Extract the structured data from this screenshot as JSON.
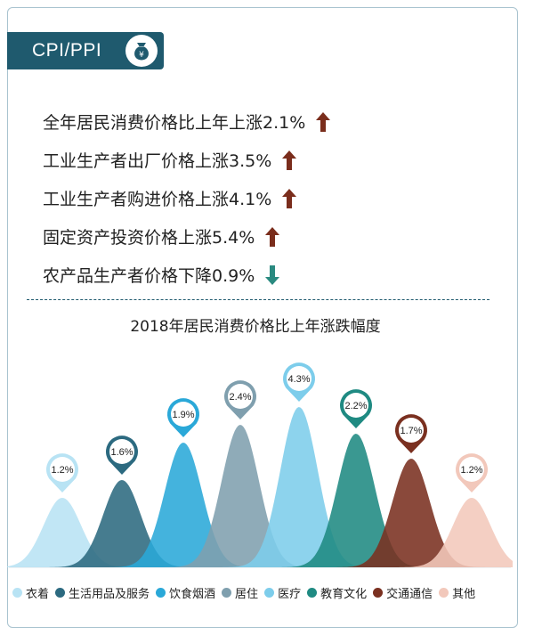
{
  "header": {
    "title": "CPI/PPI",
    "icon": "money-bag-yuan-icon"
  },
  "stats": [
    {
      "text": "全年居民消费价格比上年上涨2.1%",
      "direction": "up"
    },
    {
      "text": "工业生产者出厂价格上涨3.5%",
      "direction": "up"
    },
    {
      "text": "工业生产者购进价格上涨4.1%",
      "direction": "up"
    },
    {
      "text": "固定资产投资价格上涨5.4%",
      "direction": "up"
    },
    {
      "text": "农产品生产者价格下降0.9%",
      "direction": "down"
    }
  ],
  "colors": {
    "up_arrow": "#7a2d1c",
    "down_arrow": "#2a8a80",
    "header_bg": "#1f5a6e"
  },
  "chart_data": {
    "type": "area",
    "title": "2018年居民消费价格比上年涨跌幅度",
    "categories": [
      "衣着",
      "生活用品及服务",
      "饮食烟酒",
      "居住",
      "医疗",
      "教育文化",
      "交通通信",
      "其他"
    ],
    "values": [
      1.2,
      1.6,
      1.9,
      2.4,
      4.3,
      2.2,
      1.7,
      1.2
    ],
    "labels": [
      "1.2%",
      "1.6%",
      "1.9%",
      "2.4%",
      "4.3%",
      "2.2%",
      "1.7%",
      "1.2%"
    ],
    "colors": [
      "#b8e3f4",
      "#2c6a80",
      "#2aa8d8",
      "#7f9fae",
      "#7dcdeb",
      "#1f8a82",
      "#7a3020",
      "#f2c8bb"
    ],
    "legend_position": "bottom"
  }
}
